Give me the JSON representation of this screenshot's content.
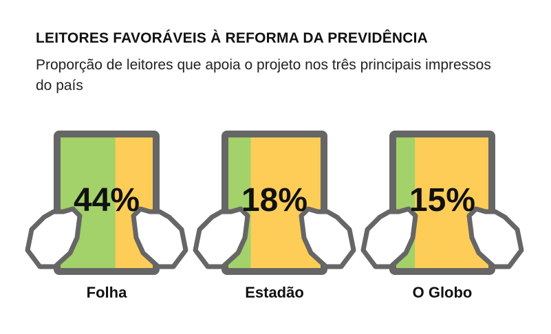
{
  "chart_data": {
    "type": "bar",
    "title": "LEITORES FAVORÁVEIS À REFORMA DA PREVIDÊNCIA",
    "subtitle": "Proporção de leitores que apoia o projeto nos três principais impressos do país",
    "categories": [
      "Folha",
      "Estadão",
      "O Globo"
    ],
    "values": [
      44,
      18,
      15
    ],
    "value_labels": [
      "44%",
      "18%",
      "15%"
    ],
    "unit": "%",
    "ylim": [
      0,
      100
    ],
    "colors": {
      "favor": "#a3d16a",
      "rest": "#fdcd57",
      "frame": "#666666"
    }
  }
}
